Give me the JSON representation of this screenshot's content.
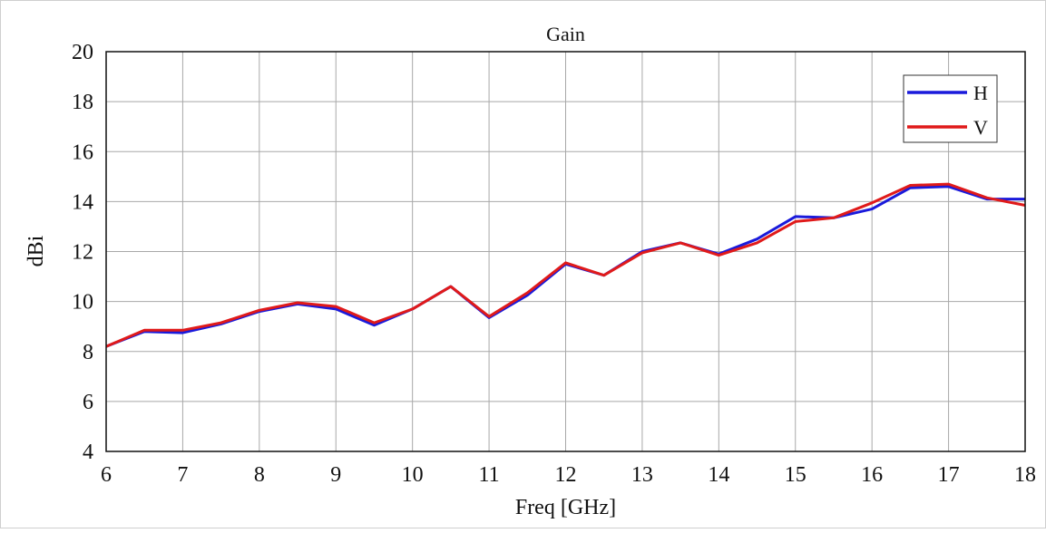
{
  "chart_data": {
    "type": "line",
    "title": "Gain",
    "xlabel": "Freq [GHz]",
    "ylabel": "dBi",
    "xlim": [
      6,
      18
    ],
    "ylim": [
      4,
      20
    ],
    "x_ticks": [
      6,
      7,
      8,
      9,
      10,
      11,
      12,
      13,
      14,
      15,
      16,
      17,
      18
    ],
    "y_ticks": [
      4,
      6,
      8,
      10,
      12,
      14,
      16,
      18,
      20
    ],
    "grid": true,
    "legend_position": "top-right",
    "x": [
      6,
      6.5,
      7,
      7.5,
      8,
      8.5,
      9,
      9.5,
      10,
      10.5,
      11,
      11.5,
      12,
      12.5,
      13,
      13.5,
      14,
      14.5,
      15,
      15.5,
      16,
      16.5,
      17,
      17.5,
      18
    ],
    "series": [
      {
        "name": "H",
        "color": "#1a1adb",
        "values": [
          8.2,
          8.8,
          8.75,
          9.1,
          9.6,
          9.9,
          9.7,
          9.05,
          9.7,
          10.6,
          9.35,
          10.25,
          11.5,
          11.05,
          12.0,
          12.35,
          11.9,
          12.5,
          13.4,
          13.35,
          13.7,
          14.55,
          14.6,
          14.1,
          14.1
        ]
      },
      {
        "name": "V",
        "color": "#e01a1a",
        "values": [
          8.2,
          8.85,
          8.85,
          9.15,
          9.65,
          9.95,
          9.8,
          9.15,
          9.7,
          10.6,
          9.4,
          10.35,
          11.55,
          11.05,
          11.95,
          12.35,
          11.85,
          12.35,
          13.2,
          13.35,
          13.95,
          14.65,
          14.7,
          14.15,
          13.85
        ]
      }
    ]
  }
}
